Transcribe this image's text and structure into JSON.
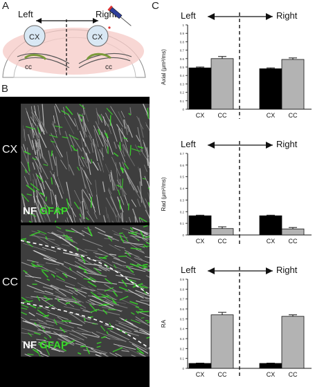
{
  "panel_letters": {
    "a": "A",
    "b": "B",
    "c": "C"
  },
  "schematic": {
    "left_label": "Left",
    "right_label": "Right",
    "cx_label": "CX",
    "cc_label": "cc"
  },
  "micrograph": {
    "top_region": "CX",
    "bottom_region": "CC",
    "stain_nf": "NF",
    "stain_gfap": "GFAP"
  },
  "colors": {
    "cx_bar": "#000000",
    "cc_bar": "#b3b3b3",
    "gfap": "#39d92a",
    "nf": "#ffffff"
  },
  "chart_data": [
    {
      "type": "bar",
      "ylabel": "Axial (μm²/ms)",
      "ylim": [
        0,
        1.0
      ],
      "yticks": [
        0,
        0.1,
        0.2,
        0.3,
        0.4,
        0.5,
        0.6,
        0.7,
        0.8,
        0.9,
        1.0
      ],
      "top_labels": [
        "Left",
        "Right"
      ],
      "groups": [
        {
          "name": "Left",
          "categories": [
            "CX",
            "CC"
          ],
          "values": [
            0.49,
            0.6
          ],
          "errors": [
            0.01,
            0.025
          ]
        },
        {
          "name": "Right",
          "categories": [
            "CX",
            "CC"
          ],
          "values": [
            0.48,
            0.59
          ],
          "errors": [
            0.01,
            0.018
          ]
        }
      ],
      "grid": false
    },
    {
      "type": "bar",
      "ylabel": "Rad (μm²/ms)",
      "ylim": [
        0,
        0.7
      ],
      "yticks": [
        0,
        0.1,
        0.2,
        0.3,
        0.4,
        0.5,
        0.6,
        0.7
      ],
      "top_labels": [
        "Left",
        "Right"
      ],
      "groups": [
        {
          "name": "Left",
          "categories": [
            "CX",
            "CC"
          ],
          "values": [
            0.165,
            0.055
          ],
          "errors": [
            0.005,
            0.015
          ]
        },
        {
          "name": "Right",
          "categories": [
            "CX",
            "CC"
          ],
          "values": [
            0.165,
            0.052
          ],
          "errors": [
            0.005,
            0.012
          ]
        }
      ],
      "grid": false
    },
    {
      "type": "bar",
      "ylabel": "RA",
      "ylim": [
        0,
        0.9
      ],
      "yticks": [
        0,
        0.1,
        0.2,
        0.3,
        0.4,
        0.5,
        0.6,
        0.7,
        0.8,
        0.9
      ],
      "top_labels": [
        "Left",
        "Right"
      ],
      "groups": [
        {
          "name": "Left",
          "categories": [
            "CX",
            "CC"
          ],
          "values": [
            0.05,
            0.54
          ],
          "errors": [
            0.003,
            0.025
          ]
        },
        {
          "name": "Right",
          "categories": [
            "CX",
            "CC"
          ],
          "values": [
            0.05,
            0.525
          ],
          "errors": [
            0.003,
            0.015
          ]
        }
      ],
      "grid": false
    }
  ]
}
